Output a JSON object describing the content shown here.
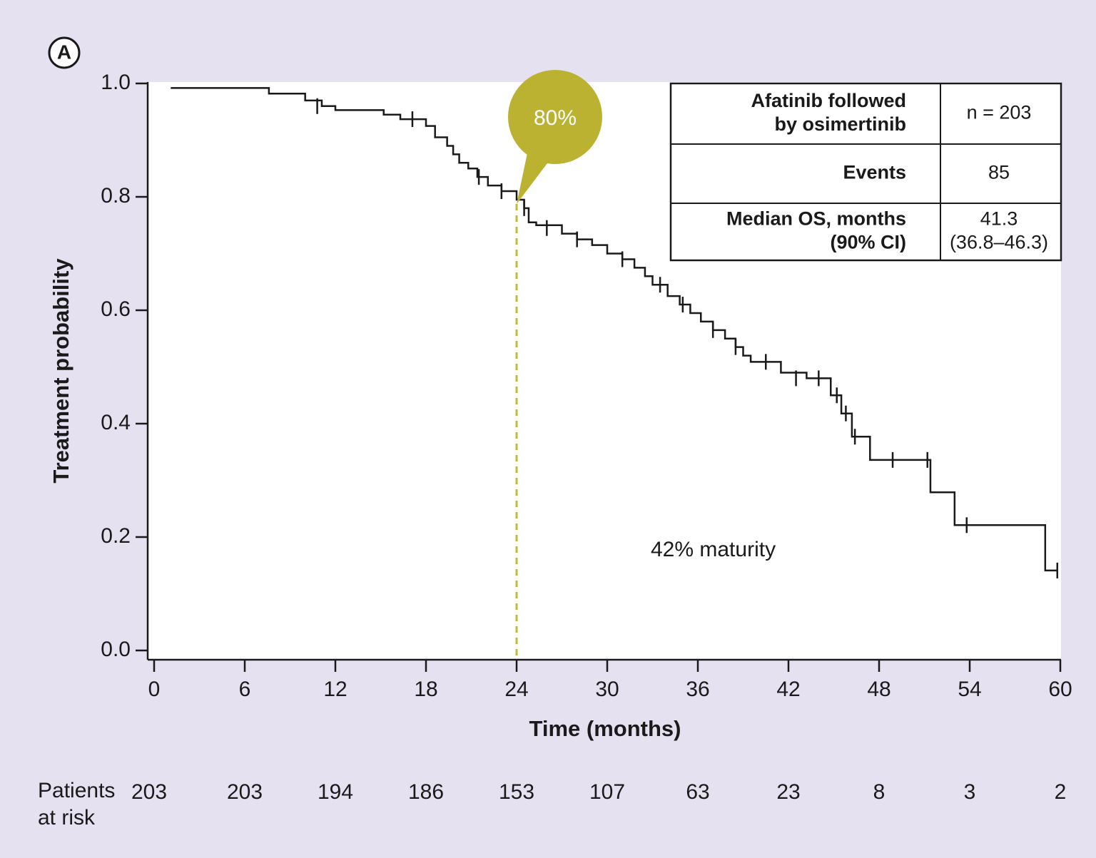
{
  "chart_data": {
    "type": "step",
    "panel_label": "A",
    "xlabel": "Time (months)",
    "ylabel": "Treatment probability",
    "xlim": [
      0,
      60
    ],
    "xticks": [
      0,
      6,
      12,
      18,
      24,
      30,
      36,
      42,
      48,
      54,
      60
    ],
    "ylim": [
      0,
      1
    ],
    "yticks": [
      {
        "value": 0,
        "label": "0.0"
      },
      0.2,
      0.4,
      0.6,
      0.8,
      {
        "value": 1,
        "label": "1.0"
      }
    ],
    "color": "#1a1a1a",
    "series": [
      {
        "color": "#1a1a1a",
        "x": [
          1.1,
          7.6,
          10.0,
          11.1,
          12.0,
          15.2,
          16.3,
          18.0,
          18.6,
          19.4,
          19.8,
          20.2,
          20.8,
          21.4,
          22.1,
          23.0,
          24.0,
          24.5,
          24.8,
          25.3,
          27.0,
          28.0,
          29.0,
          30.0,
          31.0,
          31.8,
          32.5,
          33.0,
          34.0,
          34.8,
          35.5,
          36.2,
          37.0,
          37.8,
          38.5,
          39.0,
          39.5,
          41.5,
          43.2,
          44.8,
          45.5,
          46.2,
          47.4,
          51.4,
          53.0,
          59.0,
          59.8
        ],
        "values": [
          0.992,
          0.982,
          0.97,
          0.96,
          0.953,
          0.945,
          0.937,
          0.925,
          0.905,
          0.89,
          0.875,
          0.86,
          0.85,
          0.835,
          0.82,
          0.81,
          0.795,
          0.78,
          0.755,
          0.75,
          0.735,
          0.725,
          0.715,
          0.7,
          0.69,
          0.675,
          0.66,
          0.645,
          0.625,
          0.61,
          0.595,
          0.58,
          0.565,
          0.55,
          0.535,
          0.52,
          0.509,
          0.49,
          0.48,
          0.45,
          0.418,
          0.377,
          0.336,
          0.279,
          0.221,
          0.141,
          0.141
        ]
      }
    ],
    "censored": {
      "x": [
        10.8,
        17.1,
        21.5,
        23.0,
        24.5,
        26.0,
        28.0,
        31.0,
        33.5,
        35.0,
        37.0,
        38.5,
        40.5,
        42.5,
        44.0,
        45.2,
        45.8,
        46.4,
        48.9,
        51.2,
        53.8,
        59.8
      ],
      "values": [
        0.96,
        0.937,
        0.835,
        0.81,
        0.78,
        0.745,
        0.725,
        0.69,
        0.645,
        0.61,
        0.565,
        0.535,
        0.509,
        0.48,
        0.48,
        0.45,
        0.418,
        0.377,
        0.336,
        0.336,
        0.221,
        0.141
      ]
    },
    "callout": {
      "text": "80%",
      "x": 24,
      "y": 0.8
    },
    "annotation": "42% maturity",
    "summary_table": {
      "rows": [
        [
          [
            "Afatinib followed",
            "by osimertinib"
          ],
          [
            "n = 203"
          ]
        ],
        [
          [
            "Events"
          ],
          [
            "85"
          ]
        ],
        [
          [
            "Median OS, months",
            "(90% CI)"
          ],
          [
            "41.3",
            "(36.8–46.3)"
          ]
        ]
      ]
    },
    "at_risk": {
      "label": [
        "Patients",
        "at risk"
      ],
      "counts": [
        "203",
        "203",
        "194",
        "186",
        "153",
        "107",
        "63",
        "23",
        "8",
        "3",
        "2"
      ]
    }
  }
}
